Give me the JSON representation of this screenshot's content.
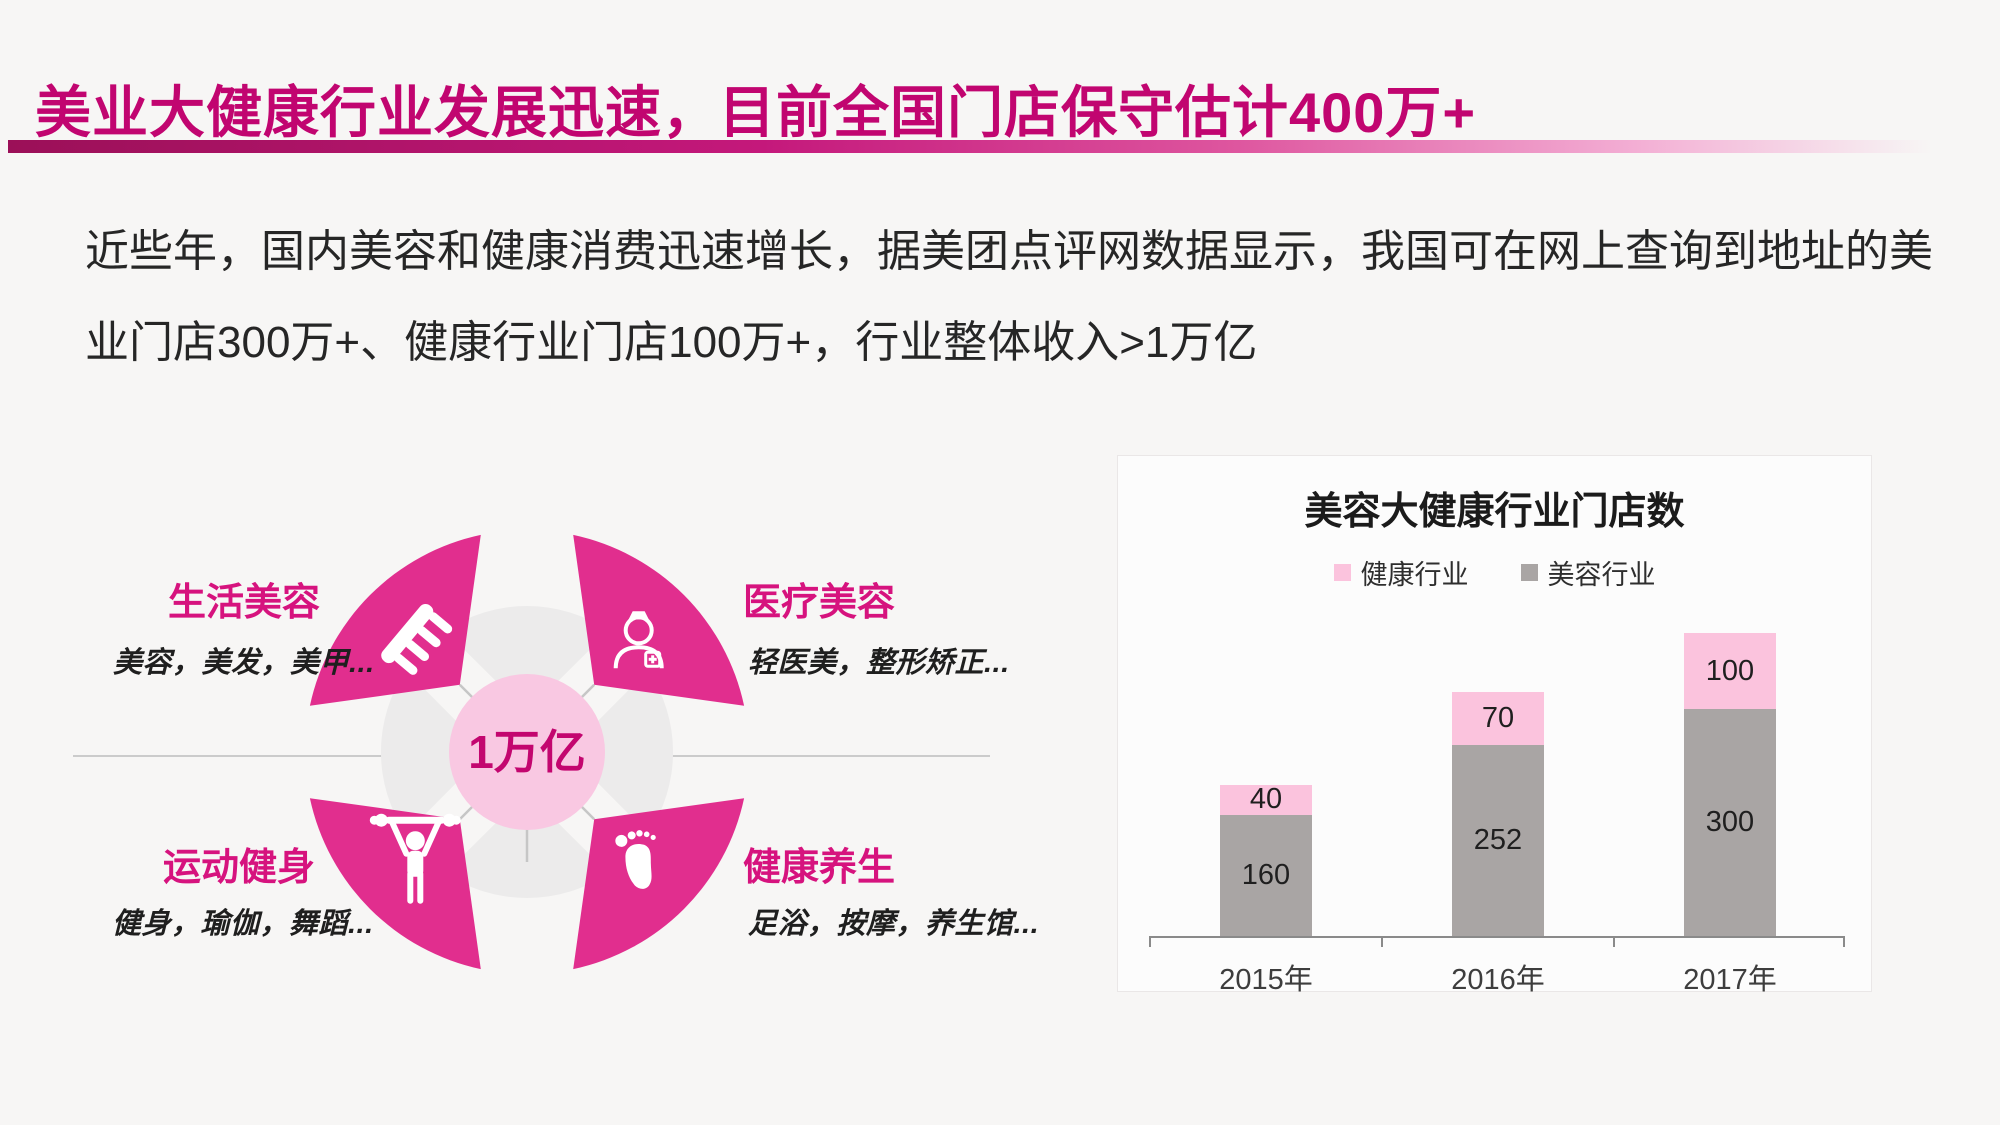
{
  "page": {
    "title": "美业大健康行业发展迅速，目前全国门店保守估计400万+",
    "paragraph_lines": [
      "近些年，国内美容和健康消费迅速增长，据美团点评网数据显示，我国可在网上查询到地址的美",
      "业门店300万+、健康行业门店100万+，行业整体收入>1万亿"
    ],
    "accent_color": "#C10570"
  },
  "diagram": {
    "center_label": "1万亿",
    "center_fill": "#F9C8E2",
    "center_text_color": "#C3066F",
    "petal_color": "#E12E8E",
    "background_petal_color": "#ECEBEB",
    "petals": [
      {
        "title": "生活美容",
        "desc": "美容，美发，美甲...",
        "icon": "comb-icon",
        "position": "top-left"
      },
      {
        "title": "医疗美容",
        "desc": "轻医美，整形矫正...",
        "icon": "doctor-icon",
        "position": "top-right"
      },
      {
        "title": "运动健身",
        "desc": "健身，瑜伽，舞蹈...",
        "icon": "weightlifter-icon",
        "position": "bottom-left"
      },
      {
        "title": "健康养生",
        "desc": "足浴，按摩，养生馆...",
        "icon": "foot-icon",
        "position": "bottom-right"
      }
    ]
  },
  "chart_data": {
    "type": "bar",
    "stacked": true,
    "title": "美容大健康行业门店数",
    "categories": [
      "2015年",
      "2016年",
      "2017年"
    ],
    "series": [
      {
        "name": "健康行业",
        "color": "#FBC3DD",
        "values": [
          40,
          70,
          100
        ]
      },
      {
        "name": "美容行业",
        "color": "#A9A5A4",
        "values": [
          160,
          252,
          300
        ]
      }
    ],
    "stack_order_bottom_to_top": [
      "美容行业",
      "健康行业"
    ],
    "legend_position": "top-center",
    "value_labels": "inside",
    "y_axis_visible": false,
    "x_axis_visible": true
  }
}
